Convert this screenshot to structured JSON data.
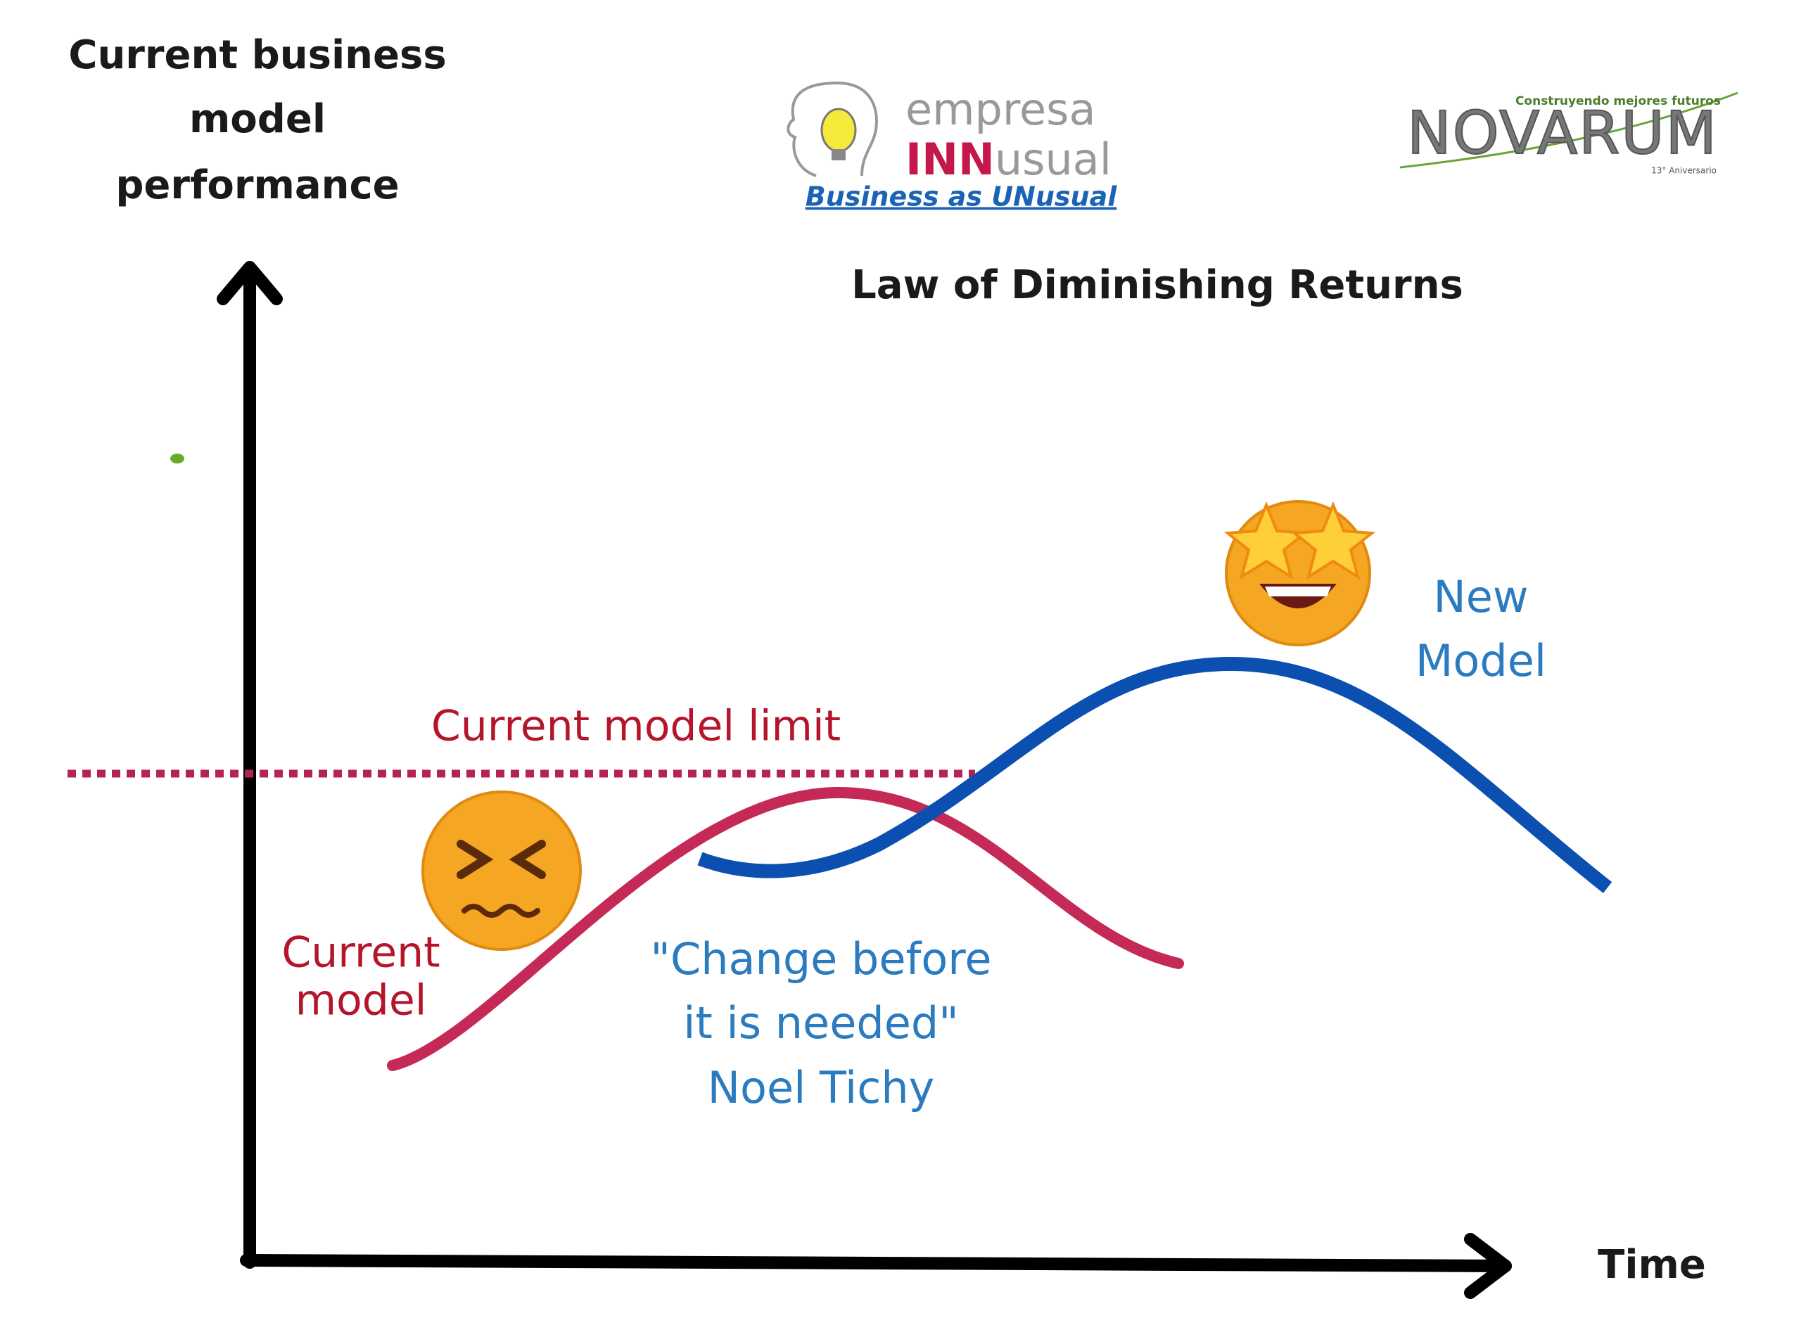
{
  "y_axis_label": [
    "Current business",
    "model",
    "performance"
  ],
  "title": "Law of Diminishing Returns",
  "x_axis_label": "Time",
  "limit_label": "Current model limit",
  "current_model_label": [
    "Current",
    "model"
  ],
  "new_model_label": [
    "New",
    "Model"
  ],
  "quote": [
    "\"Change before",
    "it is needed\"",
    "Noel Tichy"
  ],
  "logo_empresa": {
    "line1": "empresa",
    "inn": "INN",
    "usual": "usual",
    "tagline": "Business as UNusual"
  },
  "logo_novarum": {
    "slogan": "Construyendo mejores futuros",
    "name": "NOVARUM",
    "anniversary": "13° Aniversario"
  }
}
